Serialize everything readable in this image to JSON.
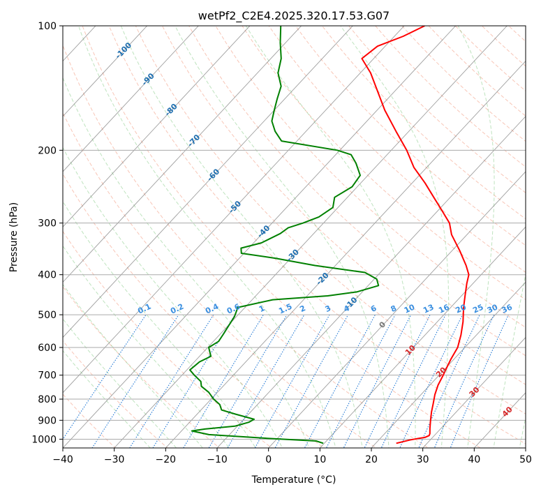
{
  "chart_data": {
    "type": "skew-t log-p",
    "title": "wetPf2_C2E4.2025.320.17.53.G07",
    "xlabel": "Temperature (°C)",
    "ylabel": "Pressure (hPa)",
    "xlim": [
      -40,
      50
    ],
    "ylim": [
      1050,
      100
    ],
    "y_scale": "log",
    "grid": true,
    "x_ticks": [
      -40,
      -30,
      -20,
      -10,
      0,
      10,
      20,
      30,
      40,
      50
    ],
    "y_ticks": [
      100,
      200,
      300,
      400,
      500,
      600,
      700,
      800,
      900,
      1000
    ],
    "isotherm_labels": [
      {
        "text": "-100",
        "t": -100,
        "p": 115
      },
      {
        "text": "-90",
        "t": -90,
        "p": 135
      },
      {
        "text": "-80",
        "t": -80,
        "p": 160
      },
      {
        "text": "-70",
        "t": -70,
        "p": 190
      },
      {
        "text": "-60",
        "t": -60,
        "p": 230
      },
      {
        "text": "-50",
        "t": -50,
        "p": 275
      },
      {
        "text": "-40",
        "t": -40,
        "p": 315
      },
      {
        "text": "-30",
        "t": -30,
        "p": 360
      },
      {
        "text": "-20",
        "t": -20,
        "p": 410
      },
      {
        "text": "-10",
        "t": -10,
        "p": 470
      },
      {
        "text": "0",
        "t": 0,
        "p": 530
      }
    ],
    "dry_adiabat_labels": [
      {
        "text": "10",
        "t": 10,
        "p": 610
      },
      {
        "text": "20",
        "t": 20,
        "p": 690
      },
      {
        "text": "30",
        "t": 30,
        "p": 770
      },
      {
        "text": "40",
        "t": 40,
        "p": 860
      }
    ],
    "mixing_ratio_labels": [
      "0.1",
      "0.2",
      "0.4",
      "0.6",
      "1",
      "1.5",
      "2",
      "3",
      "4",
      "6",
      "8",
      "10",
      "13",
      "16",
      "20",
      "25",
      "30",
      "36"
    ],
    "mixing_ratio_label_pressure": 500,
    "series": [
      {
        "role": "temperature",
        "color": "#ff0000",
        "points": [
          [
            1023,
            24.0
          ],
          [
            1005,
            26.0
          ],
          [
            995,
            27.5
          ],
          [
            990,
            28.5
          ],
          [
            980,
            29.0
          ],
          [
            970,
            28.8
          ],
          [
            940,
            27.8
          ],
          [
            900,
            26.5
          ],
          [
            860,
            25.2
          ],
          [
            820,
            24.0
          ],
          [
            780,
            22.7
          ],
          [
            740,
            21.6
          ],
          [
            700,
            20.8
          ],
          [
            670,
            20.1
          ],
          [
            640,
            19.4
          ],
          [
            600,
            18.6
          ],
          [
            560,
            17.0
          ],
          [
            520,
            15.0
          ],
          [
            480,
            12.5
          ],
          [
            450,
            10.7
          ],
          [
            420,
            8.8
          ],
          [
            400,
            7.6
          ],
          [
            380,
            5.4
          ],
          [
            350,
            1.5
          ],
          [
            320,
            -3.0
          ],
          [
            300,
            -5.5
          ],
          [
            280,
            -9.2
          ],
          [
            260,
            -13.2
          ],
          [
            240,
            -17.5
          ],
          [
            220,
            -22.5
          ],
          [
            200,
            -27.0
          ],
          [
            180,
            -32.5
          ],
          [
            160,
            -38.5
          ],
          [
            145,
            -43.0
          ],
          [
            130,
            -48.0
          ],
          [
            120,
            -52.3
          ],
          [
            112,
            -51.5
          ],
          [
            106,
            -48.3
          ],
          [
            100,
            -46.0
          ]
        ]
      },
      {
        "role": "dewpoint",
        "color": "#008000",
        "points": [
          [
            1023,
            9.8
          ],
          [
            1010,
            8.0
          ],
          [
            995,
            -2.0
          ],
          [
            975,
            -14.0
          ],
          [
            955,
            -18.0
          ],
          [
            945,
            -15.8
          ],
          [
            930,
            -10.5
          ],
          [
            910,
            -8.5
          ],
          [
            895,
            -8.0
          ],
          [
            870,
            -12.5
          ],
          [
            850,
            -16.0
          ],
          [
            825,
            -17.3
          ],
          [
            800,
            -19.5
          ],
          [
            770,
            -21.7
          ],
          [
            745,
            -24.2
          ],
          [
            725,
            -25.2
          ],
          [
            700,
            -27.6
          ],
          [
            680,
            -29.4
          ],
          [
            650,
            -29.0
          ],
          [
            630,
            -27.8
          ],
          [
            600,
            -29.8
          ],
          [
            580,
            -29.0
          ],
          [
            555,
            -29.4
          ],
          [
            530,
            -29.9
          ],
          [
            505,
            -30.4
          ],
          [
            480,
            -31.4
          ],
          [
            460,
            -26.0
          ],
          [
            450,
            -16.0
          ],
          [
            440,
            -11.0
          ],
          [
            425,
            -8.0
          ],
          [
            410,
            -9.5
          ],
          [
            395,
            -13.0
          ],
          [
            380,
            -24.0
          ],
          [
            365,
            -33.0
          ],
          [
            355,
            -40.5
          ],
          [
            345,
            -41.5
          ],
          [
            335,
            -38.5
          ],
          [
            318,
            -36.5
          ],
          [
            308,
            -36.0
          ],
          [
            300,
            -34.0
          ],
          [
            290,
            -32.0
          ],
          [
            275,
            -31.0
          ],
          [
            260,
            -32.5
          ],
          [
            245,
            -31.0
          ],
          [
            230,
            -31.5
          ],
          [
            215,
            -34.5
          ],
          [
            205,
            -37.0
          ],
          [
            200,
            -40.5
          ],
          [
            190,
            -53.0
          ],
          [
            180,
            -56.0
          ],
          [
            170,
            -58.5
          ],
          [
            160,
            -60.0
          ],
          [
            150,
            -61.5
          ],
          [
            140,
            -63.0
          ],
          [
            130,
            -66.0
          ],
          [
            120,
            -68.0
          ],
          [
            110,
            -71.0
          ],
          [
            100,
            -74.0
          ]
        ]
      }
    ]
  }
}
